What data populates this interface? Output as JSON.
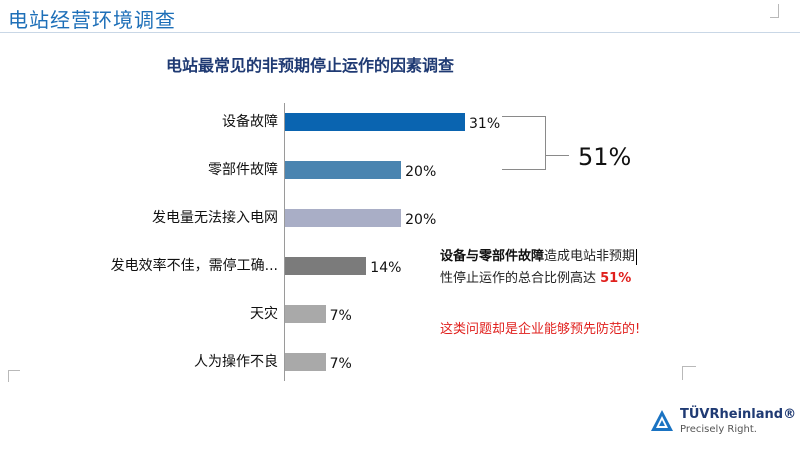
{
  "header": {
    "title": "电站经营环境调查"
  },
  "chart_data": {
    "type": "bar",
    "orientation": "horizontal",
    "title": "电站最常见的非预期停止运作的因素调查",
    "categories": [
      "设备故障",
      "零部件故障",
      "发电量无法接入电网",
      "发电效率不佳，需停工确...",
      "天灾",
      "人为操作不良"
    ],
    "values": [
      31,
      20,
      20,
      14,
      7,
      7
    ],
    "value_labels": [
      "31%",
      "20%",
      "20%",
      "14%",
      "7%",
      "7%"
    ],
    "colors": [
      "#0a64b0",
      "#4a84b0",
      "#a9aec6",
      "#7b7b7b",
      "#a9a9a9",
      "#a9a9a9"
    ],
    "xlim": [
      0,
      31
    ],
    "grid": false,
    "legend": "none"
  },
  "bracket": {
    "value": "51%"
  },
  "note": {
    "bold": "设备与零部件故障",
    "text1": "造成电站非预期",
    "text2": "性停止运作的总合比例高达 ",
    "pct": "51%"
  },
  "warning": "这类问题却是企业能够预先防范的!",
  "logo": {
    "name": "TÜVRheinland®",
    "tagline": "Precisely Right."
  }
}
